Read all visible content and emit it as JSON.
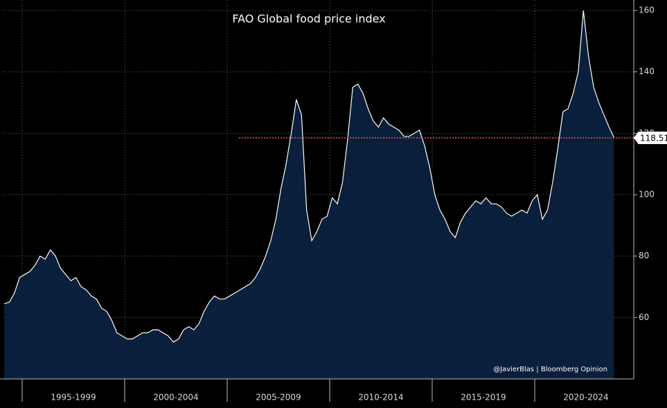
{
  "chart_data": {
    "type": "area",
    "title": "FAO Global food price index",
    "credit": "@JavierBlas | Bloomberg Opinion",
    "categories": [
      null,
      "1995-1999",
      "2000-2004",
      "2005-2009",
      "2010-2014",
      "2015-2019",
      "2020-2024"
    ],
    "values": [
      [
        64.5,
        65,
        68,
        73
      ],
      [
        74,
        75,
        77,
        80,
        79,
        82,
        80,
        76,
        74,
        72,
        73,
        70,
        69,
        67,
        66,
        63,
        62,
        59,
        55,
        54
      ],
      [
        53,
        53,
        54,
        55,
        55,
        56,
        56,
        55,
        54,
        52,
        53,
        56,
        57,
        56,
        58,
        62,
        65,
        67,
        66,
        66
      ],
      [
        67,
        68,
        69,
        70,
        71,
        73,
        76,
        80,
        85,
        92,
        102,
        110,
        120,
        131,
        126,
        95,
        85,
        88,
        92,
        93
      ],
      [
        99,
        97,
        104,
        118,
        135,
        136,
        133,
        128,
        124,
        122,
        125,
        123,
        122,
        121,
        119,
        119,
        120,
        121,
        116,
        109
      ],
      [
        100,
        95,
        92,
        88,
        86,
        91,
        94,
        96,
        98,
        97,
        99,
        97,
        97,
        96,
        94,
        93,
        94,
        95,
        94,
        98
      ],
      [
        100,
        92,
        95,
        104,
        115,
        127,
        128,
        133,
        140,
        160,
        145,
        135,
        130,
        126,
        122,
        118.51
      ]
    ],
    "color": "#ffffff",
    "fill": "#0a1f3c",
    "last_value_line_color": "#ff5a36",
    "ylim": [
      40,
      163.4
    ],
    "yticks": [
      60,
      80,
      100,
      120,
      140,
      160
    ],
    "grid": true
  }
}
